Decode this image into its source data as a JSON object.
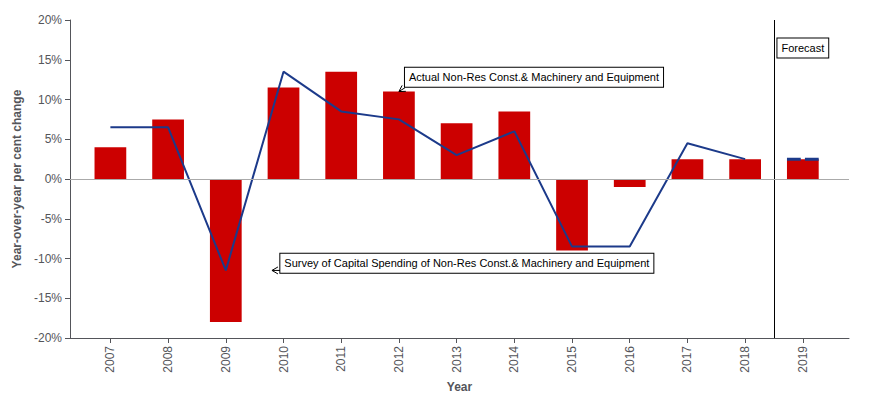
{
  "chart_data": {
    "type": "bar",
    "x": [
      2007,
      2008,
      2009,
      2010,
      2011,
      2012,
      2013,
      2014,
      2015,
      2016,
      2017,
      2018,
      2019
    ],
    "series": [
      {
        "type": "bar",
        "color": "#CC0000",
        "values": [
          4.0,
          7.5,
          -18.0,
          11.5,
          13.5,
          11.0,
          7.0,
          8.5,
          -9.0,
          -1.0,
          2.5,
          2.5,
          2.5
        ]
      },
      {
        "type": "line",
        "color": "#1C3A8A",
        "line_style": "solid",
        "values": [
          6.5,
          6.5,
          -11.5,
          13.5,
          8.5,
          7.5,
          3.0,
          6.0,
          -8.5,
          -8.5,
          4.5,
          2.5,
          null
        ]
      },
      {
        "type": "line",
        "color": "#1C3A8A",
        "line_style": "dashed",
        "values": [
          null,
          null,
          null,
          null,
          null,
          null,
          null,
          null,
          null,
          null,
          null,
          null,
          2.5
        ]
      }
    ],
    "xlabel": "Year",
    "ylabel": "Year-over-year per cent change",
    "xlim": [
      2006.3,
      2019.8
    ],
    "xticks": [
      2007,
      2008,
      2009,
      2010,
      2011,
      2012,
      2013,
      2014,
      2015,
      2016,
      2017,
      2018,
      2019
    ],
    "ylim": [
      -20,
      20
    ],
    "yticks": [
      {
        "value": -20,
        "label": "-20%"
      },
      {
        "value": -15,
        "label": "-15%"
      },
      {
        "value": -10,
        "label": "-10%"
      },
      {
        "value": -5,
        "label": "-5%"
      },
      {
        "value": 0,
        "label": "0%"
      },
      {
        "value": 5,
        "label": "5%"
      },
      {
        "value": 10,
        "label": "10%"
      },
      {
        "value": 15,
        "label": "15%"
      },
      {
        "value": 20,
        "label": "20%"
      }
    ],
    "grid": false,
    "annotations": [
      {
        "text": "Actual Non-Res Const.& Machinery and Equipment",
        "x": 2012.0,
        "y": 11.0
      },
      {
        "text": "Survey of Capital Spending of Non-Res Const.& Machinery and Equipment",
        "x": 2009.8,
        "y": -11.5
      }
    ],
    "forecast_label": "Forecast",
    "vline": 2018.5,
    "zero_line": 0
  }
}
